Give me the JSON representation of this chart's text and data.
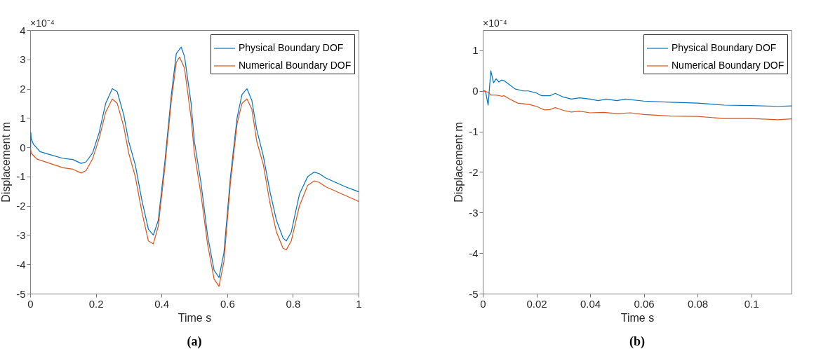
{
  "chart_data": [
    {
      "type": "line",
      "title": "(a)",
      "xlabel": "Time s",
      "ylabel": "Displacement m",
      "annotations": [
        "×10⁻⁴"
      ],
      "xlim": [
        0,
        1
      ],
      "xticks": [
        0,
        0.2,
        0.4,
        0.6,
        0.8,
        1
      ],
      "ylim": [
        -5,
        4
      ],
      "yticks": [
        -5,
        -4,
        -3,
        -2,
        -1,
        0,
        1,
        2,
        3,
        4
      ],
      "grid": false,
      "legend": "top right",
      "series": [
        {
          "name": "Physical Boundary DOF",
          "color": "#0072bd",
          "x": [
            0,
            0.001,
            0.002,
            0.003,
            0.01,
            0.03,
            0.06,
            0.1,
            0.13,
            0.155,
            0.17,
            0.19,
            0.21,
            0.23,
            0.25,
            0.265,
            0.285,
            0.3,
            0.32,
            0.34,
            0.36,
            0.375,
            0.39,
            0.41,
            0.43,
            0.445,
            0.46,
            0.47,
            0.49,
            0.5,
            0.52,
            0.54,
            0.56,
            0.575,
            0.59,
            0.61,
            0.63,
            0.645,
            0.66,
            0.675,
            0.69,
            0.71,
            0.73,
            0.75,
            0.77,
            0.78,
            0.795,
            0.82,
            0.845,
            0.865,
            0.88,
            0.9,
            0.93,
            0.96,
            1.0
          ],
          "values": [
            0,
            -0.3,
            0.5,
            0.3,
            0.1,
            -0.15,
            -0.25,
            -0.38,
            -0.42,
            -0.55,
            -0.5,
            -0.2,
            0.5,
            1.5,
            2.0,
            1.9,
            1.1,
            0.2,
            -0.6,
            -1.8,
            -2.8,
            -3.0,
            -2.5,
            -0.5,
            1.8,
            3.2,
            3.42,
            3.1,
            1.5,
            0.2,
            -1.2,
            -3.0,
            -4.2,
            -4.45,
            -3.6,
            -1.0,
            1.0,
            1.8,
            2.0,
            1.6,
            0.6,
            -0.3,
            -1.5,
            -2.5,
            -3.1,
            -3.2,
            -2.9,
            -1.6,
            -1.0,
            -0.85,
            -0.9,
            -1.05,
            -1.2,
            -1.35,
            -1.52
          ]
        },
        {
          "name": "Numerical Boundary DOF",
          "color": "#d95319",
          "x": [
            0,
            0.003,
            0.02,
            0.06,
            0.1,
            0.13,
            0.155,
            0.17,
            0.19,
            0.21,
            0.23,
            0.25,
            0.265,
            0.285,
            0.3,
            0.32,
            0.34,
            0.36,
            0.375,
            0.39,
            0.41,
            0.43,
            0.445,
            0.455,
            0.47,
            0.49,
            0.5,
            0.52,
            0.54,
            0.56,
            0.575,
            0.59,
            0.61,
            0.63,
            0.645,
            0.66,
            0.675,
            0.69,
            0.71,
            0.73,
            0.75,
            0.77,
            0.78,
            0.795,
            0.82,
            0.845,
            0.865,
            0.88,
            0.9,
            0.93,
            0.96,
            1.0
          ],
          "values": [
            0,
            -0.2,
            -0.4,
            -0.55,
            -0.7,
            -0.75,
            -0.88,
            -0.8,
            -0.4,
            0.3,
            1.2,
            1.65,
            1.5,
            0.7,
            -0.2,
            -1.0,
            -2.2,
            -3.2,
            -3.3,
            -2.7,
            -0.7,
            1.6,
            2.9,
            3.08,
            2.7,
            1.0,
            -0.2,
            -1.6,
            -3.3,
            -4.5,
            -4.75,
            -3.9,
            -1.2,
            0.8,
            1.5,
            1.65,
            1.3,
            0.2,
            -0.6,
            -1.9,
            -2.9,
            -3.45,
            -3.5,
            -3.2,
            -2.0,
            -1.3,
            -1.15,
            -1.2,
            -1.35,
            -1.5,
            -1.65,
            -1.85
          ]
        }
      ]
    },
    {
      "type": "line",
      "title": "(b)",
      "xlabel": "Time s",
      "ylabel": "Displacement m",
      "annotations": [
        "×10⁻⁴"
      ],
      "xlim": [
        0,
        0.115
      ],
      "xticks": [
        0,
        0.02,
        0.04,
        0.06,
        0.08,
        0.1
      ],
      "ylim": [
        -5,
        1.5
      ],
      "yticks": [
        -5,
        -4,
        -3,
        -2,
        -1,
        0,
        1
      ],
      "grid": false,
      "legend": "top right",
      "series": [
        {
          "name": "Physical Boundary DOF",
          "color": "#0072bd",
          "x": [
            0,
            0.001,
            0.002,
            0.003,
            0.004,
            0.005,
            0.006,
            0.007,
            0.008,
            0.01,
            0.012,
            0.015,
            0.017,
            0.02,
            0.022,
            0.025,
            0.027,
            0.03,
            0.033,
            0.036,
            0.04,
            0.043,
            0.046,
            0.05,
            0.053,
            0.06,
            0.07,
            0.08,
            0.09,
            0.1,
            0.11,
            0.115
          ],
          "values": [
            0,
            0,
            -0.35,
            0.5,
            0.2,
            0.3,
            0.22,
            0.27,
            0.25,
            0.15,
            0.05,
            0.0,
            0.0,
            -0.05,
            -0.12,
            -0.12,
            -0.06,
            -0.15,
            -0.2,
            -0.17,
            -0.2,
            -0.24,
            -0.2,
            -0.24,
            -0.2,
            -0.25,
            -0.28,
            -0.3,
            -0.35,
            -0.36,
            -0.38,
            -0.37
          ]
        },
        {
          "name": "Numerical Boundary DOF",
          "color": "#d95319",
          "x": [
            0,
            0.002,
            0.003,
            0.005,
            0.007,
            0.008,
            0.01,
            0.013,
            0.017,
            0.02,
            0.023,
            0.025,
            0.027,
            0.03,
            0.033,
            0.036,
            0.04,
            0.045,
            0.05,
            0.055,
            0.06,
            0.07,
            0.08,
            0.09,
            0.1,
            0.11,
            0.115
          ],
          "values": [
            0,
            -0.03,
            -0.1,
            -0.1,
            -0.13,
            -0.12,
            -0.2,
            -0.3,
            -0.33,
            -0.38,
            -0.47,
            -0.46,
            -0.41,
            -0.48,
            -0.52,
            -0.5,
            -0.54,
            -0.53,
            -0.56,
            -0.54,
            -0.58,
            -0.62,
            -0.63,
            -0.68,
            -0.68,
            -0.71,
            -0.69
          ]
        }
      ]
    }
  ]
}
